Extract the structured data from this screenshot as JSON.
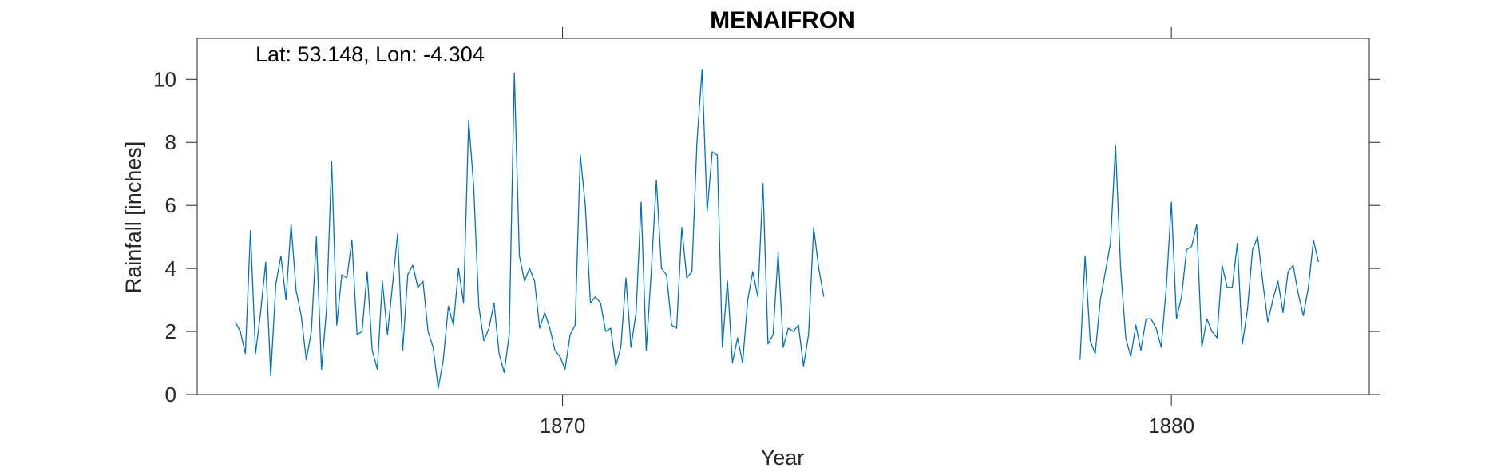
{
  "chart_data": {
    "type": "line",
    "title": "MENAIFRON",
    "xlabel": "Year",
    "ylabel": "Rainfall [inches]",
    "annotation": "Lat: 53.148, Lon: -4.304",
    "xlim": [
      1864.0,
      1883.25
    ],
    "ylim": [
      0,
      11.3
    ],
    "xticks": [
      1870,
      1880
    ],
    "yticks": [
      0,
      2,
      4,
      6,
      8,
      10
    ],
    "grid": false,
    "line_color": "#0072BD",
    "series": [
      {
        "segments": [
          {
            "start_year": 1864.625,
            "step": 0.08333,
            "values": [
              2.3,
              2.0,
              1.3,
              5.2,
              1.3,
              2.6,
              4.2,
              0.6,
              3.5,
              4.4,
              3.0,
              5.4,
              3.3,
              2.5,
              1.1,
              2.0,
              5.0,
              0.8,
              2.7,
              7.4,
              2.2,
              3.8,
              3.7,
              4.9,
              1.9,
              2.0,
              3.9,
              1.4,
              0.8,
              3.6,
              1.9,
              3.5,
              5.1,
              1.4,
              3.8,
              4.1,
              3.4,
              3.6,
              2.0,
              1.5,
              0.2,
              1.1,
              2.8,
              2.2,
              4.0,
              2.9,
              8.7,
              6.6,
              2.8,
              1.7,
              2.1,
              2.9,
              1.3,
              0.7,
              1.9,
              10.2,
              4.4,
              3.6,
              4.0,
              3.6,
              2.1,
              2.6,
              2.1,
              1.4,
              1.2,
              0.8,
              1.9,
              2.2,
              7.6,
              6.0,
              2.9,
              3.1,
              2.9,
              2.0,
              2.1,
              0.9,
              1.5,
              3.7,
              1.5,
              2.6,
              6.1,
              1.4,
              3.9,
              6.8,
              4.0,
              3.8,
              2.2,
              2.1,
              5.3,
              3.7,
              3.9,
              8.0,
              10.3,
              5.8,
              7.7,
              7.6,
              1.5,
              3.6,
              1.0,
              1.8,
              1.0,
              3.0,
              3.9,
              3.1,
              6.7,
              1.6,
              1.9,
              4.5,
              1.5,
              2.1,
              2.0,
              2.2,
              0.9,
              1.9,
              5.3,
              4.0,
              3.1
            ]
          },
          {
            "start_year": 1878.5,
            "step": 0.08333,
            "values": [
              1.1,
              4.4,
              1.7,
              1.3,
              3.0,
              3.9,
              4.8,
              7.9,
              4.0,
              1.8,
              1.2,
              2.2,
              1.4,
              2.4,
              2.4,
              2.1,
              1.5,
              3.4,
              6.1,
              2.4,
              3.1,
              4.6,
              4.7,
              5.4,
              1.5,
              2.4,
              2.0,
              1.8,
              4.1,
              3.4,
              3.4,
              4.8,
              1.6,
              2.7,
              4.6,
              5.0,
              3.6,
              2.3,
              3.0,
              3.6,
              2.6,
              3.9,
              4.1,
              3.2,
              2.5,
              3.4,
              4.9,
              4.2
            ]
          }
        ]
      }
    ]
  }
}
